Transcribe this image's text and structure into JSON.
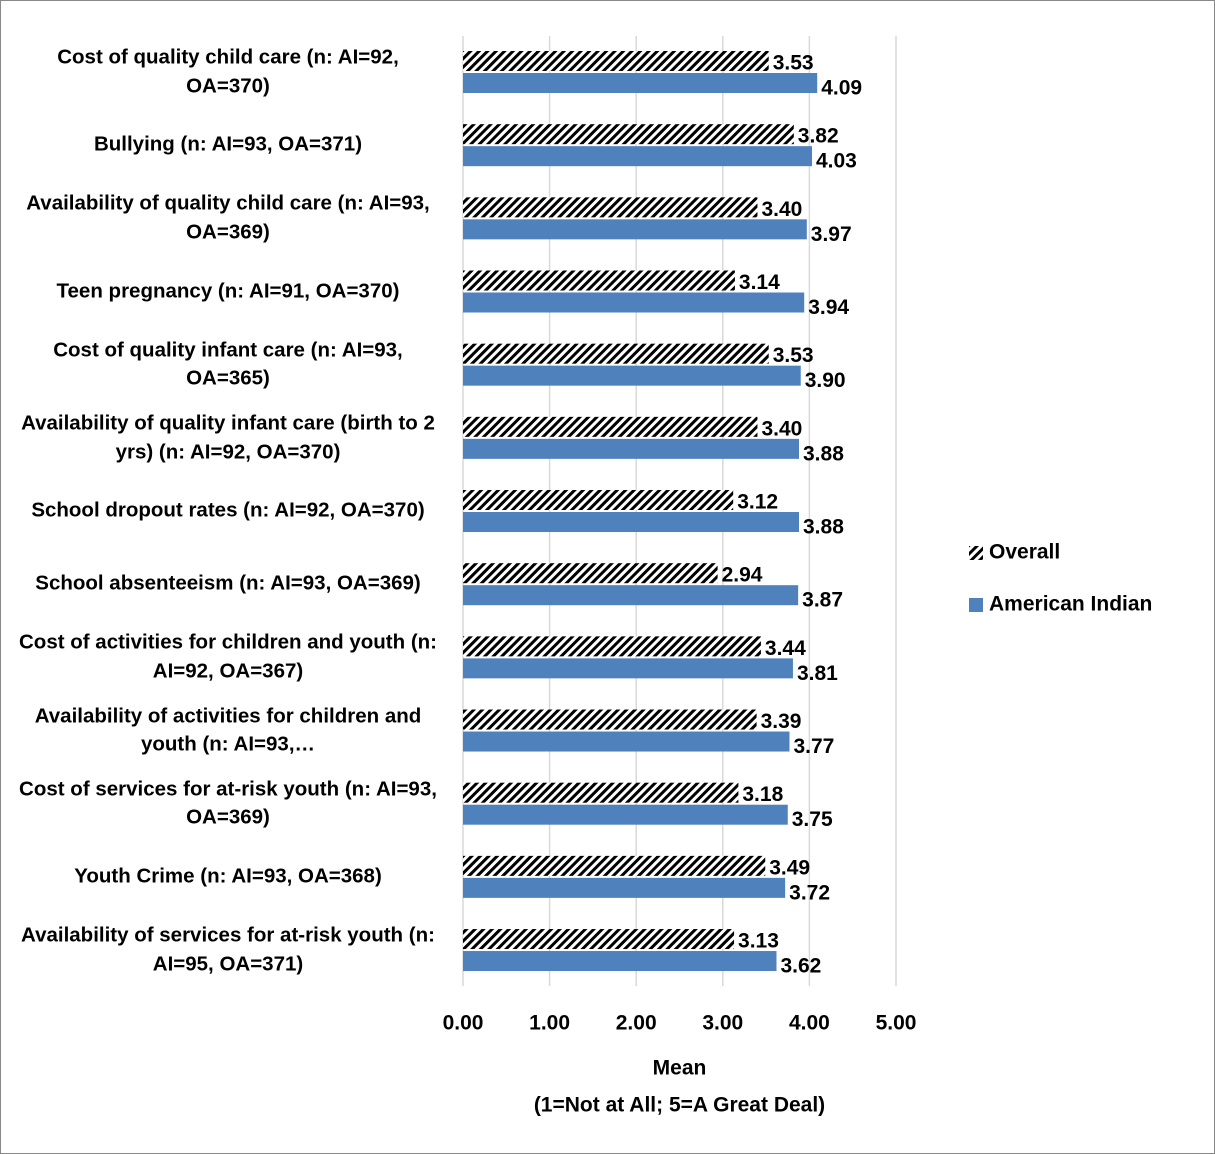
{
  "chart_data": {
    "type": "bar",
    "orientation": "horizontal",
    "categories": [
      "Cost of quality child care (n: AI=92, OA=370)",
      "Bullying (n: AI=93, OA=371)",
      "Availability of quality child care (n: AI=93, OA=369)",
      "Teen pregnancy (n: AI=91, OA=370)",
      "Cost of quality infant care (n: AI=93, OA=365)",
      "Availability of quality infant care (birth to 2 yrs) (n: AI=92, OA=370)",
      "School dropout rates (n: AI=92, OA=370)",
      "School absenteeism (n: AI=93, OA=369)",
      "Cost of activities for children and youth (n: AI=92, OA=367)",
      "Availability of activities for children and youth (n: AI=93,…",
      "Cost of services for at-risk youth (n: AI=93, OA=369)",
      "Youth Crime (n: AI=93, OA=368)",
      "Availability of services for at-risk youth (n: AI=95, OA=371)"
    ],
    "series": [
      {
        "name": "Overall",
        "color": "#000000",
        "pattern": "hatch",
        "values": [
          3.53,
          3.82,
          3.4,
          3.14,
          3.53,
          3.4,
          3.12,
          2.94,
          3.44,
          3.39,
          3.18,
          3.49,
          3.13
        ],
        "value_labels": [
          "3.53",
          "3.82",
          "3.40",
          "3.14",
          "3.53",
          "3.40",
          "3.12",
          "2.94",
          "3.44",
          "3.39",
          "3.18",
          "3.49",
          "3.13"
        ]
      },
      {
        "name": "American Indian",
        "color": "#4f81bd",
        "values": [
          4.09,
          4.03,
          3.97,
          3.94,
          3.9,
          3.88,
          3.88,
          3.87,
          3.81,
          3.77,
          3.75,
          3.72,
          3.62
        ],
        "value_labels": [
          "4.09",
          "4.03",
          "3.97",
          "3.94",
          "3.90",
          "3.88",
          "3.88",
          "3.87",
          "3.81",
          "3.77",
          "3.75",
          "3.72",
          "3.62"
        ]
      }
    ],
    "xlim": [
      0,
      5
    ],
    "xticks": [
      {
        "value": 0,
        "label": "0.00"
      },
      {
        "value": 1,
        "label": "1.00"
      },
      {
        "value": 2,
        "label": "2.00"
      },
      {
        "value": 3,
        "label": "3.00"
      },
      {
        "value": 4,
        "label": "4.00"
      },
      {
        "value": 5,
        "label": "5.00"
      }
    ],
    "xlabel": [
      "Mean",
      "(1=Not at All; 5=A Great Deal)"
    ],
    "grid": true,
    "legend": "right"
  }
}
